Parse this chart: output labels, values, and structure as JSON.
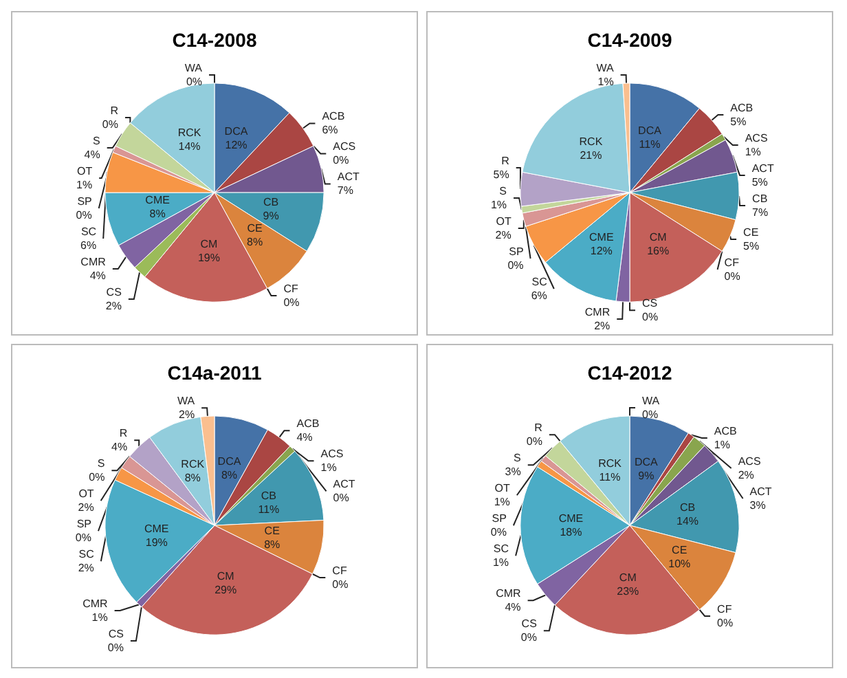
{
  "chart_data": [
    {
      "type": "pie",
      "title": "C14-2008",
      "categories": [
        "DCA",
        "ACB",
        "ACS",
        "ACT",
        "CB",
        "CE",
        "CF",
        "CM",
        "CS",
        "CMR",
        "CME",
        "SC",
        "SP",
        "OT",
        "S",
        "R",
        "RCK",
        "WA"
      ],
      "values": [
        12,
        6,
        0,
        7,
        9,
        8,
        0,
        19,
        2,
        4,
        8,
        6,
        0,
        1,
        4,
        0,
        14,
        0
      ],
      "value_labels": [
        "12%",
        "6%",
        "0%",
        "7%",
        "9%",
        "8%",
        "0%",
        "19%",
        "2%",
        "4%",
        "8%",
        "6%",
        "0%",
        "1%",
        "4%",
        "0%",
        "14%",
        "0%"
      ],
      "colors": [
        "#4572a7",
        "#aa4643",
        "#89a54e",
        "#71588f",
        "#4198af",
        "#db843d",
        "#93a9cf",
        "#c4605a",
        "#9bbb59",
        "#8064a2",
        "#4bacc6",
        "#f79646",
        "#a5a5a5",
        "#d99694",
        "#c3d69b",
        "#b3a2c7",
        "#92cddc",
        "#fabf8f"
      ]
    },
    {
      "type": "pie",
      "title": "C14-2009",
      "categories": [
        "DCA",
        "ACB",
        "ACS",
        "ACT",
        "CB",
        "CE",
        "CF",
        "CM",
        "CS",
        "CMR",
        "CME",
        "SC",
        "SP",
        "OT",
        "S",
        "R",
        "RCK",
        "WA"
      ],
      "values": [
        11,
        5,
        1,
        5,
        7,
        5,
        0,
        16,
        0,
        2,
        12,
        6,
        0,
        2,
        1,
        5,
        21,
        1
      ],
      "value_labels": [
        "11%",
        "5%",
        "1%",
        "5%",
        "7%",
        "5%",
        "0%",
        "16%",
        "0%",
        "2%",
        "12%",
        "6%",
        "0%",
        "2%",
        "1%",
        "5%",
        "21%",
        "1%"
      ],
      "colors": [
        "#4572a7",
        "#aa4643",
        "#89a54e",
        "#71588f",
        "#4198af",
        "#db843d",
        "#93a9cf",
        "#c4605a",
        "#9bbb59",
        "#8064a2",
        "#4bacc6",
        "#f79646",
        "#a5a5a5",
        "#d99694",
        "#c3d69b",
        "#b3a2c7",
        "#92cddc",
        "#fabf8f"
      ]
    },
    {
      "type": "pie",
      "title": "C14a-2011",
      "categories": [
        "DCA",
        "ACB",
        "ACS",
        "ACT",
        "CB",
        "CE",
        "CF",
        "CM",
        "CS",
        "CMR",
        "CME",
        "SC",
        "SP",
        "OT",
        "S",
        "R",
        "RCK",
        "WA"
      ],
      "values": [
        8,
        4,
        1,
        0,
        11,
        8,
        0,
        29,
        0,
        1,
        19,
        2,
        0,
        2,
        0,
        4,
        8,
        2
      ],
      "value_labels": [
        "8%",
        "4%",
        "1%",
        "0%",
        "11%",
        "8%",
        "0%",
        "29%",
        "0%",
        "1%",
        "19%",
        "2%",
        "0%",
        "2%",
        "0%",
        "4%",
        "8%",
        "2%"
      ],
      "colors": [
        "#4572a7",
        "#aa4643",
        "#89a54e",
        "#71588f",
        "#4198af",
        "#db843d",
        "#93a9cf",
        "#c4605a",
        "#9bbb59",
        "#8064a2",
        "#4bacc6",
        "#f79646",
        "#a5a5a5",
        "#d99694",
        "#c3d69b",
        "#b3a2c7",
        "#92cddc",
        "#fabf8f"
      ]
    },
    {
      "type": "pie",
      "title": "C14-2012",
      "categories": [
        "DCA",
        "ACB",
        "ACS",
        "ACT",
        "CB",
        "CE",
        "CF",
        "CM",
        "CS",
        "CMR",
        "CME",
        "SC",
        "SP",
        "OT",
        "S",
        "R",
        "RCK",
        "WA"
      ],
      "values": [
        9,
        1,
        2,
        3,
        14,
        10,
        0,
        23,
        0,
        4,
        18,
        1,
        0,
        1,
        3,
        0,
        11,
        0
      ],
      "value_labels": [
        "9%",
        "1%",
        "2%",
        "3%",
        "14%",
        "10%",
        "0%",
        "23%",
        "0%",
        "4%",
        "18%",
        "1%",
        "0%",
        "1%",
        "3%",
        "0%",
        "11%",
        "0%"
      ],
      "colors": [
        "#4572a7",
        "#aa4643",
        "#89a54e",
        "#71588f",
        "#4198af",
        "#db843d",
        "#93a9cf",
        "#c4605a",
        "#9bbb59",
        "#8064a2",
        "#4bacc6",
        "#f79646",
        "#a5a5a5",
        "#d99694",
        "#c3d69b",
        "#b3a2c7",
        "#92cddc",
        "#fabf8f"
      ]
    }
  ]
}
